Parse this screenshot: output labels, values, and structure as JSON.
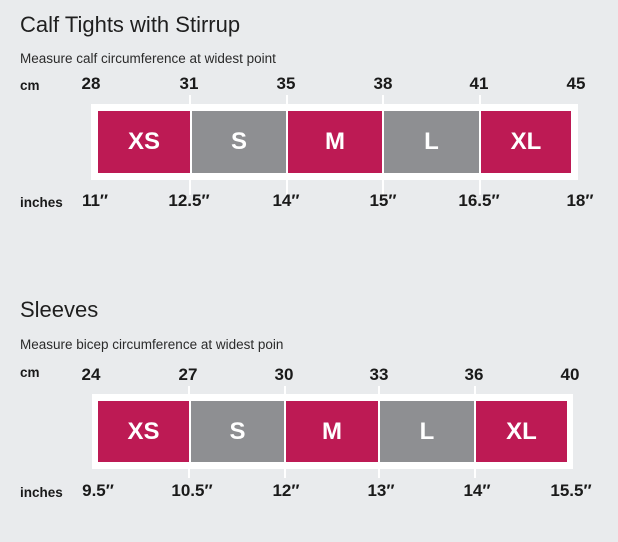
{
  "calf": {
    "title": "Calf Tights with Stirrup",
    "subtitle": "Measure calf circumference at widest point",
    "cm_label": "cm",
    "inches_label": "inches",
    "cm": [
      "28",
      "31",
      "35",
      "38",
      "41",
      "45"
    ],
    "inches": [
      "11″",
      "12.5″",
      "14″",
      "15″",
      "16.5″",
      "18″"
    ],
    "sizes": [
      "XS",
      "S",
      "M",
      "L",
      "XL"
    ]
  },
  "sleeves": {
    "title": "Sleeves",
    "subtitle": "Measure bicep circumference at widest poin",
    "cm_label": "cm",
    "inches_label": "inches",
    "cm": [
      "24",
      "27",
      "30",
      "33",
      "36",
      "40"
    ],
    "inches": [
      "9.5″",
      "10.5″",
      "12″",
      "13″",
      "14″",
      "15.5″"
    ],
    "sizes": [
      "XS",
      "S",
      "M",
      "L",
      "XL"
    ]
  },
  "colors": {
    "pink": "#bd1a54",
    "gray": "#8e8f92",
    "band": "#ffffff",
    "background": "#e9ebed"
  }
}
